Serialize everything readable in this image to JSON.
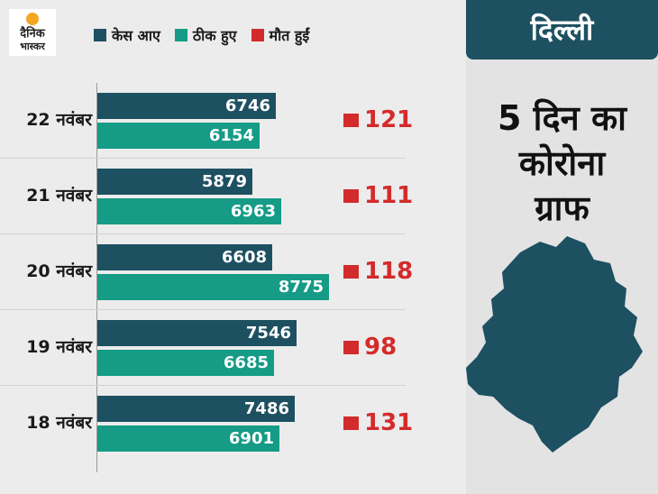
{
  "logo": {
    "line1": "दैनिक",
    "line2": "भास्कर"
  },
  "colors": {
    "cases": "#1d5061",
    "recovered": "#159b86",
    "deaths": "#d32b2b",
    "panel": "#1d5061"
  },
  "side_panel": {
    "city": "दिल्ली",
    "title_lines": [
      "5 दिन का",
      "कोरोना",
      "ग्राफ"
    ],
    "map_icon": "delhi-map-icon"
  },
  "chart_data": {
    "type": "bar",
    "orientation": "horizontal",
    "legend_position": "top",
    "categories": [
      "22 नवंबर",
      "21 नवंबर",
      "20 नवंबर",
      "19 नवंबर",
      "18 नवंबर"
    ],
    "series": [
      {
        "name": "केस आए",
        "values": [
          6746,
          5879,
          6608,
          7546,
          7486
        ]
      },
      {
        "name": "ठीक हुए",
        "values": [
          6154,
          6963,
          8775,
          6685,
          6901
        ]
      },
      {
        "name": "मौत हुईं",
        "values": [
          121,
          111,
          118,
          98,
          131
        ]
      }
    ],
    "xlim": [
      0,
      10000
    ]
  }
}
